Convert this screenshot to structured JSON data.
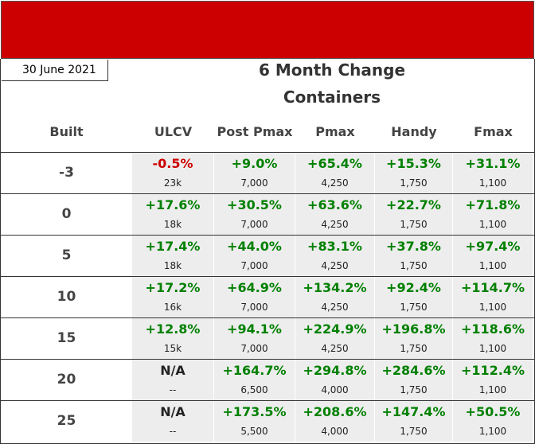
{
  "header": {
    "date": "30 June 2021",
    "title": "6 Month Change",
    "subtitle": "Containers"
  },
  "table": {
    "columns": [
      "Built",
      "ULCV",
      "Post Pmax",
      "Pmax",
      "Handy",
      "Fmax"
    ],
    "rows": [
      {
        "built": "-3",
        "cells": [
          {
            "change": "-0.5%",
            "size": "23k"
          },
          {
            "change": "+9.0%",
            "size": "7,000"
          },
          {
            "change": "+65.4%",
            "size": "4,250"
          },
          {
            "change": "+15.3%",
            "size": "1,750"
          },
          {
            "change": "+31.1%",
            "size": "1,100"
          }
        ]
      },
      {
        "built": "0",
        "cells": [
          {
            "change": "+17.6%",
            "size": "18k"
          },
          {
            "change": "+30.5%",
            "size": "7,000"
          },
          {
            "change": "+63.6%",
            "size": "4,250"
          },
          {
            "change": "+22.7%",
            "size": "1,750"
          },
          {
            "change": "+71.8%",
            "size": "1,100"
          }
        ]
      },
      {
        "built": "5",
        "cells": [
          {
            "change": "+17.4%",
            "size": "18k"
          },
          {
            "change": "+44.0%",
            "size": "7,000"
          },
          {
            "change": "+83.1%",
            "size": "4,250"
          },
          {
            "change": "+37.8%",
            "size": "1,750"
          },
          {
            "change": "+97.4%",
            "size": "1,100"
          }
        ]
      },
      {
        "built": "10",
        "cells": [
          {
            "change": "+17.2%",
            "size": "16k"
          },
          {
            "change": "+64.9%",
            "size": "7,000"
          },
          {
            "change": "+134.2%",
            "size": "4,250"
          },
          {
            "change": "+92.4%",
            "size": "1,750"
          },
          {
            "change": "+114.7%",
            "size": "1,100"
          }
        ]
      },
      {
        "built": "15",
        "cells": [
          {
            "change": "+12.8%",
            "size": "15k"
          },
          {
            "change": "+94.1%",
            "size": "7,000"
          },
          {
            "change": "+224.9%",
            "size": "4,250"
          },
          {
            "change": "+196.8%",
            "size": "1,750"
          },
          {
            "change": "+118.6%",
            "size": "1,100"
          }
        ]
      },
      {
        "built": "20",
        "cells": [
          {
            "change": "N/A",
            "size": "--"
          },
          {
            "change": "+164.7%",
            "size": "6,500"
          },
          {
            "change": "+294.8%",
            "size": "4,000"
          },
          {
            "change": "+284.6%",
            "size": "1,750"
          },
          {
            "change": "+112.4%",
            "size": "1,100"
          }
        ]
      },
      {
        "built": "25",
        "cells": [
          {
            "change": "N/A",
            "size": "--"
          },
          {
            "change": "+173.5%",
            "size": "5,500"
          },
          {
            "change": "+208.6%",
            "size": "4,000"
          },
          {
            "change": "+147.4%",
            "size": "1,750"
          },
          {
            "change": "+50.5%",
            "size": "1,100"
          }
        ]
      }
    ]
  }
}
